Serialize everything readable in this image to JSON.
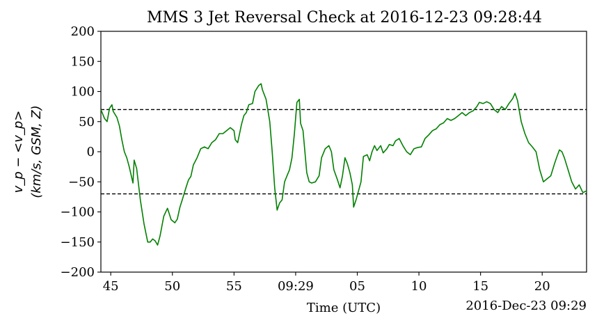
{
  "chart_data": {
    "type": "line",
    "title": "MMS 3 Jet Reversal Check at 2016-12-23 09:28:44",
    "xlabel": "Time (UTC)",
    "date_label": "2016-Dec-23 09:29",
    "ylabel_line1": "v_p − <v_p>",
    "ylabel_line2": "(km/s, GSM, Z)",
    "ylim": [
      -200,
      200
    ],
    "xlim_seconds_after_0928": [
      44.2,
      83.6
    ],
    "yticks": [
      200,
      150,
      100,
      50,
      0,
      -50,
      -100,
      -150,
      -200
    ],
    "xticks": [
      {
        "t": 45,
        "label": "45"
      },
      {
        "t": 50,
        "label": "50"
      },
      {
        "t": 55,
        "label": "55"
      },
      {
        "t": 60,
        "label": "09:29"
      },
      {
        "t": 65,
        "label": "05"
      },
      {
        "t": 70,
        "label": "10"
      },
      {
        "t": 75,
        "label": "15"
      },
      {
        "t": 80,
        "label": "20"
      }
    ],
    "thresholds": [
      70,
      -70
    ],
    "series": [
      {
        "color": "#008000",
        "points": [
          [
            44.2,
            70
          ],
          [
            44.5,
            55
          ],
          [
            44.7,
            50
          ],
          [
            44.9,
            72
          ],
          [
            45.1,
            78
          ],
          [
            45.2,
            67
          ],
          [
            45.5,
            57
          ],
          [
            45.7,
            43
          ],
          [
            45.9,
            20
          ],
          [
            46.1,
            0
          ],
          [
            46.3,
            -10
          ],
          [
            46.5,
            -25
          ],
          [
            46.8,
            -52
          ],
          [
            46.9,
            -14
          ],
          [
            47.1,
            -28
          ],
          [
            47.4,
            -80
          ],
          [
            47.7,
            -120
          ],
          [
            48.0,
            -150
          ],
          [
            48.2,
            -150
          ],
          [
            48.4,
            -145
          ],
          [
            48.6,
            -148
          ],
          [
            48.8,
            -155
          ],
          [
            49.0,
            -140
          ],
          [
            49.3,
            -107
          ],
          [
            49.6,
            -94
          ],
          [
            49.9,
            -113
          ],
          [
            50.2,
            -118
          ],
          [
            50.4,
            -112
          ],
          [
            50.6,
            -93
          ],
          [
            50.8,
            -80
          ],
          [
            51.1,
            -60
          ],
          [
            51.3,
            -47
          ],
          [
            51.5,
            -41
          ],
          [
            51.7,
            -22
          ],
          [
            52.0,
            -10
          ],
          [
            52.3,
            5
          ],
          [
            52.6,
            8
          ],
          [
            52.9,
            5
          ],
          [
            53.2,
            15
          ],
          [
            53.5,
            20
          ],
          [
            53.8,
            30
          ],
          [
            54.1,
            30
          ],
          [
            54.4,
            35
          ],
          [
            54.7,
            40
          ],
          [
            55.0,
            35
          ],
          [
            55.1,
            20
          ],
          [
            55.3,
            15
          ],
          [
            55.6,
            45
          ],
          [
            55.8,
            60
          ],
          [
            56.0,
            65
          ],
          [
            56.2,
            78
          ],
          [
            56.5,
            80
          ],
          [
            56.7,
            100
          ],
          [
            57.0,
            110
          ],
          [
            57.2,
            113
          ],
          [
            57.3,
            103
          ],
          [
            57.6,
            87
          ],
          [
            57.9,
            50
          ],
          [
            58.1,
            0
          ],
          [
            58.3,
            -60
          ],
          [
            58.5,
            -97
          ],
          [
            58.7,
            -85
          ],
          [
            58.9,
            -80
          ],
          [
            59.1,
            -50
          ],
          [
            59.3,
            -40
          ],
          [
            59.5,
            -30
          ],
          [
            59.7,
            -10
          ],
          [
            59.9,
            30
          ],
          [
            60.1,
            82
          ],
          [
            60.3,
            87
          ],
          [
            60.4,
            47
          ],
          [
            60.6,
            35
          ],
          [
            60.9,
            -35
          ],
          [
            61.1,
            -50
          ],
          [
            61.3,
            -52
          ],
          [
            61.6,
            -50
          ],
          [
            61.9,
            -40
          ],
          [
            62.1,
            -10
          ],
          [
            62.4,
            5
          ],
          [
            62.7,
            10
          ],
          [
            62.9,
            0
          ],
          [
            63.1,
            -30
          ],
          [
            63.4,
            -47
          ],
          [
            63.6,
            -60
          ],
          [
            63.8,
            -40
          ],
          [
            64.0,
            -10
          ],
          [
            64.2,
            -20
          ],
          [
            64.4,
            -35
          ],
          [
            64.6,
            -55
          ],
          [
            64.7,
            -92
          ],
          [
            64.9,
            -80
          ],
          [
            65.1,
            -65
          ],
          [
            65.3,
            -50
          ],
          [
            65.5,
            -8
          ],
          [
            65.8,
            -5
          ],
          [
            66.0,
            -15
          ],
          [
            66.2,
            0
          ],
          [
            66.4,
            10
          ],
          [
            66.6,
            2
          ],
          [
            66.9,
            10
          ],
          [
            67.1,
            -2
          ],
          [
            67.4,
            5
          ],
          [
            67.6,
            12
          ],
          [
            67.9,
            10
          ],
          [
            68.1,
            18
          ],
          [
            68.4,
            22
          ],
          [
            68.7,
            10
          ],
          [
            69.0,
            0
          ],
          [
            69.3,
            -5
          ],
          [
            69.6,
            5
          ],
          [
            69.9,
            7
          ],
          [
            70.2,
            8
          ],
          [
            70.5,
            22
          ],
          [
            70.8,
            28
          ],
          [
            71.1,
            35
          ],
          [
            71.4,
            38
          ],
          [
            71.7,
            45
          ],
          [
            72.0,
            48
          ],
          [
            72.3,
            55
          ],
          [
            72.6,
            52
          ],
          [
            72.9,
            55
          ],
          [
            73.2,
            60
          ],
          [
            73.5,
            65
          ],
          [
            73.8,
            60
          ],
          [
            74.1,
            65
          ],
          [
            74.4,
            68
          ],
          [
            74.7,
            75
          ],
          [
            74.9,
            82
          ],
          [
            75.2,
            80
          ],
          [
            75.5,
            83
          ],
          [
            75.8,
            80
          ],
          [
            76.1,
            70
          ],
          [
            76.4,
            65
          ],
          [
            76.7,
            75
          ],
          [
            77.0,
            70
          ],
          [
            77.3,
            80
          ],
          [
            77.6,
            88
          ],
          [
            77.8,
            97
          ],
          [
            78.0,
            85
          ],
          [
            78.3,
            50
          ],
          [
            78.6,
            30
          ],
          [
            78.9,
            15
          ],
          [
            79.2,
            8
          ],
          [
            79.5,
            0
          ],
          [
            79.8,
            -30
          ],
          [
            80.1,
            -50
          ],
          [
            80.4,
            -45
          ],
          [
            80.7,
            -40
          ],
          [
            81.0,
            -20
          ],
          [
            81.2,
            -8
          ],
          [
            81.4,
            3
          ],
          [
            81.6,
            0
          ],
          [
            81.8,
            -10
          ],
          [
            82.1,
            -30
          ],
          [
            82.4,
            -50
          ],
          [
            82.7,
            -62
          ],
          [
            83.0,
            -55
          ],
          [
            83.3,
            -68
          ],
          [
            83.6,
            -65
          ]
        ]
      }
    ]
  }
}
